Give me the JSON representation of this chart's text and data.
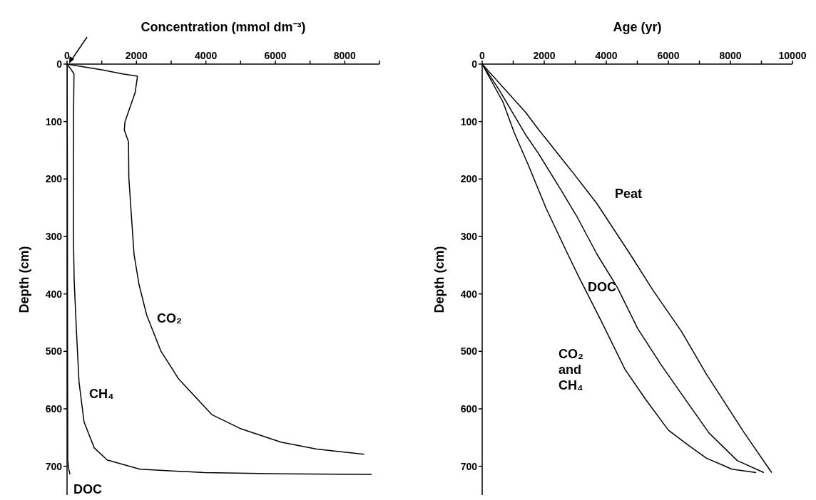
{
  "chart_data": [
    {
      "type": "line",
      "xlabel": "Concentration (mmol dm⁻³)",
      "ylabel": "Depth (cm)",
      "xlim": [
        0,
        9000
      ],
      "xticks": [
        0,
        {
          "value": 1000,
          "label": null
        },
        2000,
        {
          "value": 3000,
          "label": null
        },
        4000,
        {
          "value": 5000,
          "label": null
        },
        6000,
        {
          "value": 7000,
          "label": null
        },
        8000,
        {
          "value": 9000,
          "label": null
        }
      ],
      "ylim": [
        750,
        0
      ],
      "yticks": [
        0,
        100,
        200,
        300,
        400,
        500,
        600,
        700
      ],
      "marker": "none",
      "line_style": "solid",
      "series": [
        {
          "name": "CO₂",
          "color": "#000000",
          "x": [
            0,
            400,
            1000,
            1600,
            2030,
            1960,
            1670,
            1650,
            1770,
            1780,
            1855,
            1930,
            2075,
            2295,
            2700,
            3215,
            4170,
            4980,
            6160,
            7190,
            8560
          ],
          "values": [
            0,
            4,
            10,
            17,
            21,
            50,
            100,
            115,
            135,
            198,
            265,
            331,
            384,
            437,
            499,
            548,
            610,
            634,
            658,
            670,
            679
          ]
        },
        {
          "name": "CH₄",
          "color": "#000000",
          "x": [
            0,
            100,
            200,
            185,
            180,
            205,
            270,
            345,
            490,
            785,
            1155,
            2100,
            3950,
            6160,
            8775
          ],
          "values": [
            0,
            8,
            17,
            100,
            286,
            376,
            464,
            553,
            623,
            668,
            689,
            705,
            711,
            713,
            714
          ]
        },
        {
          "name": "DOC",
          "color": "#000000",
          "x": [
            0,
            10,
            15,
            20,
            50,
            85
          ],
          "values": [
            0,
            200,
            500,
            690,
            705,
            714
          ]
        }
      ]
    },
    {
      "type": "line",
      "xlabel": "Age (yr)",
      "ylabel": "Depth (cm)",
      "xlim": [
        0,
        10000
      ],
      "xticks": [
        0,
        {
          "value": 1000,
          "label": null
        },
        2000,
        {
          "value": 3000,
          "label": null
        },
        4000,
        {
          "value": 5000,
          "label": null
        },
        6000,
        {
          "value": 7000,
          "label": null
        },
        8000,
        {
          "value": 9000,
          "label": null
        },
        10000
      ],
      "ylim": [
        750,
        0
      ],
      "yticks": [
        0,
        100,
        200,
        300,
        400,
        500,
        600,
        700
      ],
      "marker": "none",
      "line_style": "solid",
      "series": [
        {
          "name": "Peat",
          "color": "#000000",
          "x": [
            0,
            1400,
            1820,
            2600,
            2970,
            3700,
            4770,
            5510,
            6420,
            7230,
            8450,
            9330
          ],
          "values": [
            0,
            84,
            114,
            167,
            192,
            243,
            331,
            394,
            465,
            540,
            642,
            711
          ]
        },
        {
          "name": "DOC",
          "color": "#000000",
          "x": [
            0,
            550,
            1400,
            1820,
            2550,
            3050,
            3700,
            4360,
            5010,
            5750,
            6500,
            7310,
            8220,
            9080
          ],
          "values": [
            0,
            45,
            123,
            156,
            220,
            265,
            331,
            389,
            460,
            522,
            580,
            642,
            690,
            711
          ]
        },
        {
          "name": "CO₂ and CH₄",
          "color": "#000000",
          "x": [
            0,
            670,
            1030,
            1490,
            2060,
            2760,
            3130,
            3790,
            4600,
            5260,
            6000,
            6660,
            7230,
            8050,
            8830
          ],
          "values": [
            0,
            66,
            119,
            176,
            251,
            331,
            372,
            442,
            531,
            583,
            637,
            664,
            686,
            705,
            711
          ]
        }
      ]
    }
  ]
}
